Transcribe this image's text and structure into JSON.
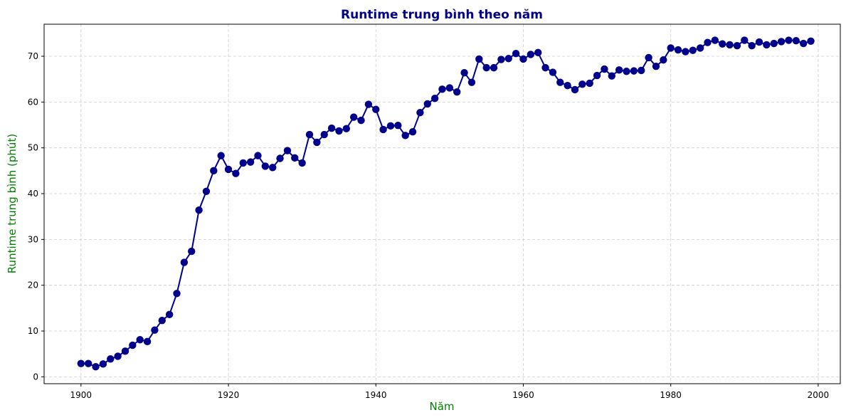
{
  "chart_data": {
    "type": "line",
    "title": "Runtime trung bình theo năm",
    "xlabel": "Năm",
    "ylabel": "Runtime trung bình (phút)",
    "xlim": [
      1895,
      2003
    ],
    "ylim": [
      -1.5,
      77
    ],
    "xticks": [
      1900,
      1920,
      1940,
      1960,
      1980,
      2000
    ],
    "yticks": [
      0,
      10,
      20,
      30,
      40,
      50,
      60,
      70
    ],
    "grid": true,
    "colors": {
      "line": "#00008b",
      "title": "#00008b",
      "axis_label": "#008000"
    },
    "x": [
      1900,
      1901,
      1902,
      1903,
      1904,
      1905,
      1906,
      1907,
      1908,
      1909,
      1910,
      1911,
      1912,
      1913,
      1914,
      1915,
      1916,
      1917,
      1918,
      1919,
      1920,
      1921,
      1922,
      1923,
      1924,
      1925,
      1926,
      1927,
      1928,
      1929,
      1930,
      1931,
      1932,
      1933,
      1934,
      1935,
      1936,
      1937,
      1938,
      1939,
      1940,
      1941,
      1942,
      1943,
      1944,
      1945,
      1946,
      1947,
      1948,
      1949,
      1950,
      1951,
      1952,
      1953,
      1954,
      1955,
      1956,
      1957,
      1958,
      1959,
      1960,
      1961,
      1962,
      1963,
      1964,
      1965,
      1966,
      1967,
      1968,
      1969,
      1970,
      1971,
      1972,
      1973,
      1974,
      1975,
      1976,
      1977,
      1978,
      1979,
      1980,
      1981,
      1982,
      1983,
      1984,
      1985,
      1986,
      1987,
      1988,
      1989,
      1990,
      1991,
      1992,
      1993,
      1994,
      1995,
      1996,
      1997,
      1998,
      1999
    ],
    "y": [
      2.9,
      2.9,
      2.2,
      2.8,
      3.9,
      4.5,
      5.6,
      6.9,
      8.1,
      7.7,
      10.2,
      12.3,
      13.6,
      18.2,
      25.0,
      27.4,
      36.4,
      40.5,
      45.0,
      48.3,
      45.3,
      44.4,
      46.7,
      46.9,
      48.3,
      46.0,
      45.7,
      47.7,
      49.4,
      47.8,
      46.7,
      52.9,
      51.2,
      52.9,
      54.3,
      53.7,
      54.2,
      56.7,
      56.0,
      59.5,
      58.4,
      54.0,
      54.8,
      54.9,
      52.7,
      53.5,
      57.7,
      59.6,
      60.8,
      62.8,
      63.1,
      62.2,
      66.4,
      64.3,
      69.4,
      67.5,
      67.5,
      69.3,
      69.5,
      70.6,
      69.4,
      70.4,
      70.8,
      67.5,
      66.5,
      64.3,
      63.6,
      62.7,
      63.9,
      64.1,
      65.8,
      67.2,
      65.7,
      67.0,
      66.7,
      66.8,
      66.9,
      69.7,
      67.8,
      69.2,
      71.8,
      71.4,
      71.0,
      71.3,
      71.8,
      73.0,
      73.5,
      72.7,
      72.5,
      72.3,
      73.5,
      72.3,
      73.1,
      72.5,
      72.8,
      73.2,
      73.5,
      73.4,
      72.8,
      73.3
    ]
  }
}
